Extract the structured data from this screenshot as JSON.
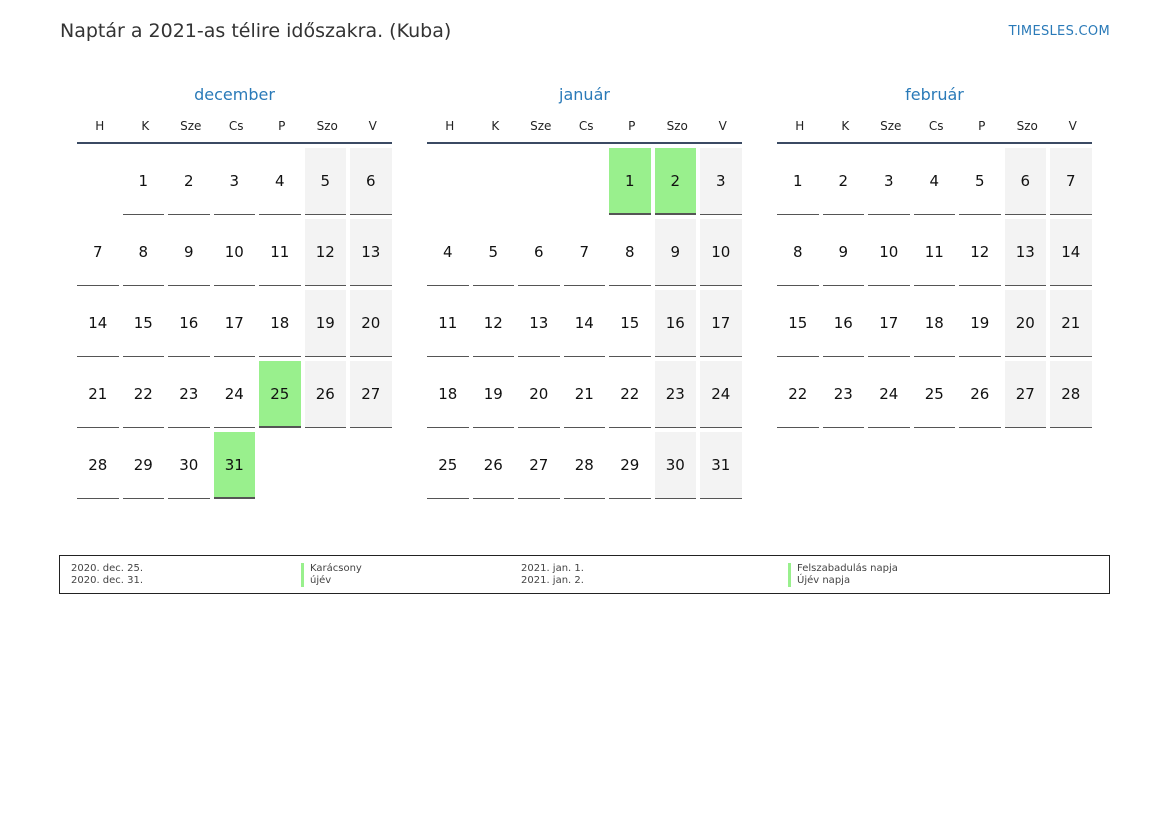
{
  "header": {
    "title": "Naptár a 2021-as télire időszakra. (Kuba)",
    "site": "TIMESLES.COM"
  },
  "weekdays": [
    "H",
    "K",
    "Sze",
    "Cs",
    "P",
    "Szo",
    "V"
  ],
  "months": [
    {
      "name": "december",
      "weeks": [
        [
          "",
          "1",
          "2",
          "3",
          "4",
          "5",
          "6"
        ],
        [
          "7",
          "8",
          "9",
          "10",
          "11",
          "12",
          "13"
        ],
        [
          "14",
          "15",
          "16",
          "17",
          "18",
          "19",
          "20"
        ],
        [
          "21",
          "22",
          "23",
          "24",
          "25",
          "26",
          "27"
        ],
        [
          "28",
          "29",
          "30",
          "31",
          "",
          "",
          ""
        ]
      ],
      "holidays": [
        "25",
        "31"
      ]
    },
    {
      "name": "január",
      "weeks": [
        [
          "",
          "",
          "",
          "",
          "1",
          "2",
          "3"
        ],
        [
          "4",
          "5",
          "6",
          "7",
          "8",
          "9",
          "10"
        ],
        [
          "11",
          "12",
          "13",
          "14",
          "15",
          "16",
          "17"
        ],
        [
          "18",
          "19",
          "20",
          "21",
          "22",
          "23",
          "24"
        ],
        [
          "25",
          "26",
          "27",
          "28",
          "29",
          "30",
          "31"
        ]
      ],
      "holidays": [
        "1",
        "2"
      ]
    },
    {
      "name": "február",
      "weeks": [
        [
          "1",
          "2",
          "3",
          "4",
          "5",
          "6",
          "7"
        ],
        [
          "8",
          "9",
          "10",
          "11",
          "12",
          "13",
          "14"
        ],
        [
          "15",
          "16",
          "17",
          "18",
          "19",
          "20",
          "21"
        ],
        [
          "22",
          "23",
          "24",
          "25",
          "26",
          "27",
          "28"
        ]
      ],
      "holidays": []
    }
  ],
  "legend": [
    {
      "date": "2020. dec. 25.",
      "name": "Karácsony"
    },
    {
      "date": "2020. dec. 31.",
      "name": "újév"
    },
    {
      "date": "2021. jan. 1.",
      "name": "Felszabadulás napja"
    },
    {
      "date": "2021. jan. 2.",
      "name": "Újév napja"
    }
  ],
  "colors": {
    "accent": "#2a7ab8",
    "holiday": "#99f08d",
    "weekend": "#f3f3f3"
  }
}
